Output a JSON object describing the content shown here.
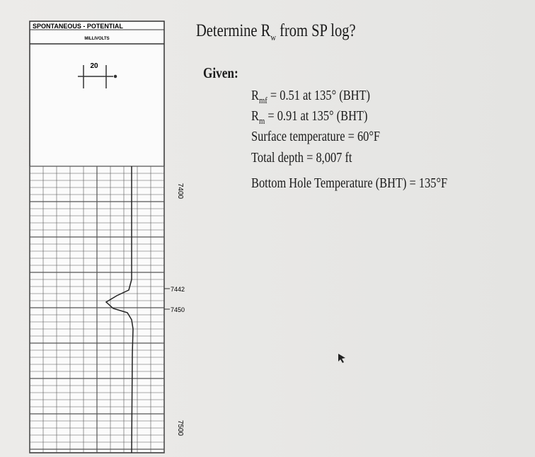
{
  "log_header": {
    "title": "SPONTANEOUS - POTENTIAL",
    "units": "MILLIVOLTS",
    "scale": "20"
  },
  "depth_labels": [
    "7400",
    "7442",
    "7450",
    "7500"
  ],
  "question": {
    "prefix": "Determine R",
    "subscript": "w",
    "suffix": " from SP log?"
  },
  "given": {
    "label": "Given:",
    "items": [
      {
        "symbol": "R",
        "subscript": "mf",
        "text": " = 0.51 at 135° (BHT)"
      },
      {
        "symbol": "R",
        "subscript": "m",
        "text": " = 0.91 at 135° (BHT)"
      },
      {
        "text": "Surface temperature = 60°F"
      },
      {
        "text": "Total depth = 8,007 ft"
      },
      {
        "text": "Bottom Hole Temperature (BHT) = 135°F"
      }
    ]
  }
}
